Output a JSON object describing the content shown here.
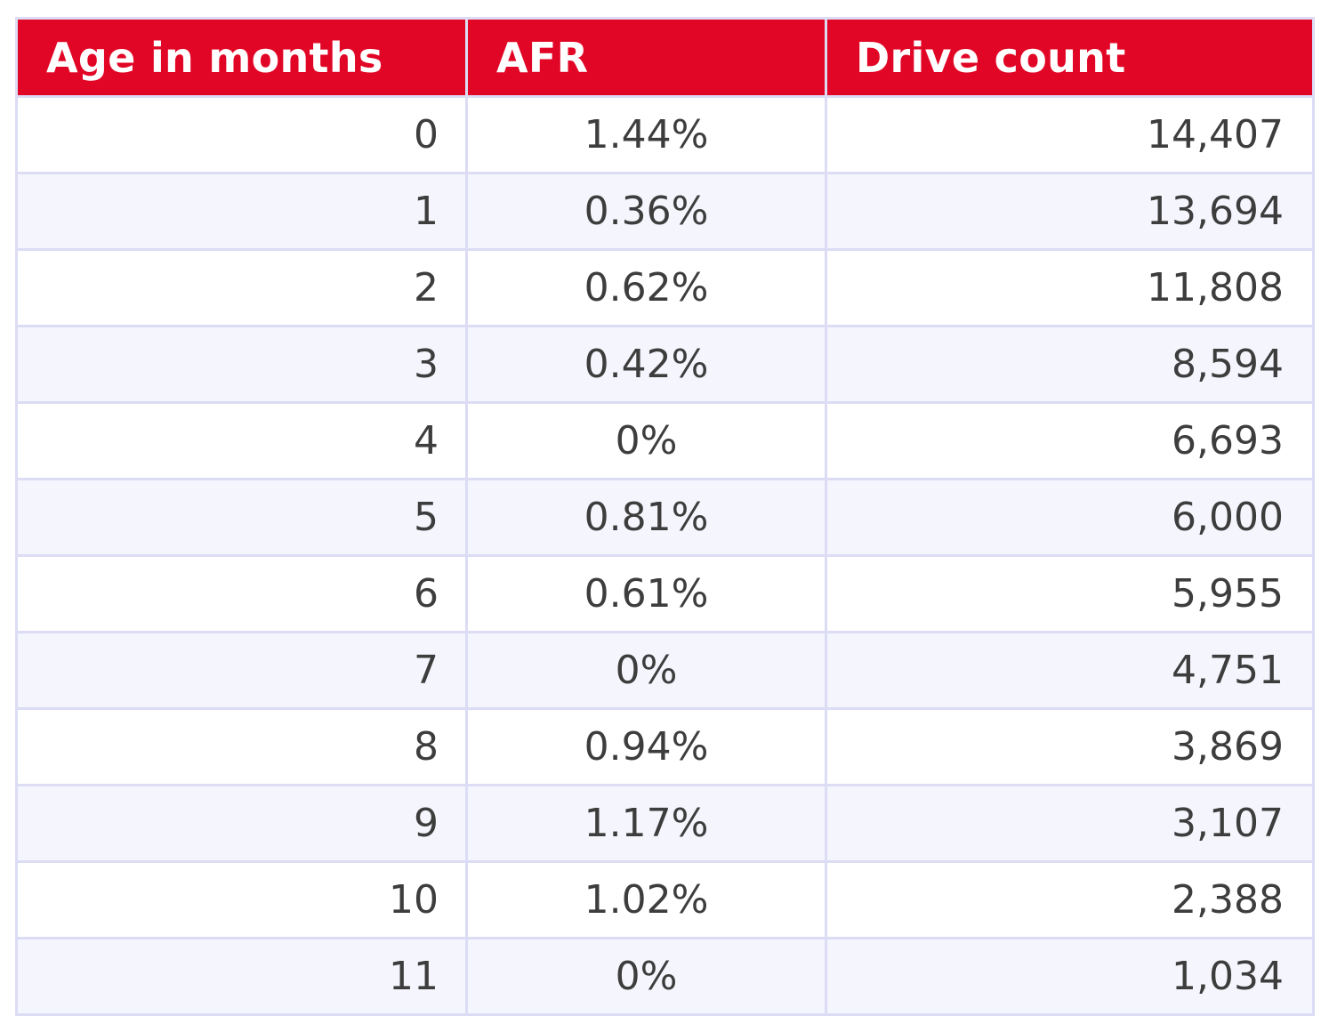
{
  "table": {
    "headers": [
      "Age in months",
      "AFR",
      "Drive count"
    ]
  },
  "chart_data": {
    "type": "table",
    "columns": [
      "Age in months",
      "AFR",
      "Drive count"
    ],
    "rows": [
      [
        "0",
        "1.44%",
        "14,407"
      ],
      [
        "1",
        "0.36%",
        "13,694"
      ],
      [
        "2",
        "0.62%",
        "11,808"
      ],
      [
        "3",
        "0.42%",
        "8,594"
      ],
      [
        "4",
        "0%",
        "6,693"
      ],
      [
        "5",
        "0.81%",
        "6,000"
      ],
      [
        "6",
        "0.61%",
        "5,955"
      ],
      [
        "7",
        "0%",
        "4,751"
      ],
      [
        "8",
        "0.94%",
        "3,869"
      ],
      [
        "9",
        "1.17%",
        "3,107"
      ],
      [
        "10",
        "1.02%",
        "2,388"
      ],
      [
        "11",
        "0%",
        "1,034"
      ]
    ]
  },
  "colors": {
    "header_background": "#e20626",
    "header_text": "#ffffff",
    "border": "#dcdcf5",
    "row_alt_background": "#f5f5fd",
    "cell_text": "#3d3d3d"
  }
}
